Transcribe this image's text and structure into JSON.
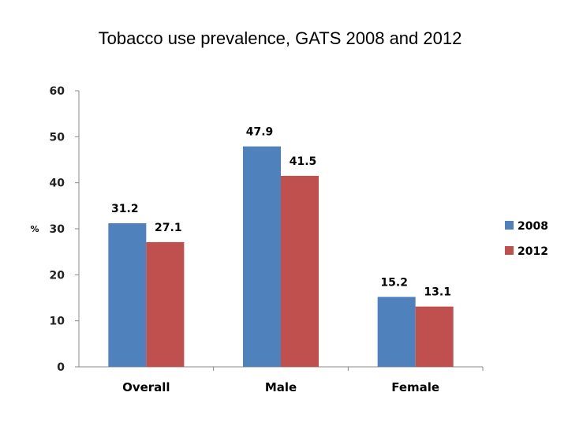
{
  "chart_data": {
    "type": "bar",
    "title": "Tobacco use prevalence, GATS 2008 and 2012",
    "xlabel": "",
    "ylabel": "%",
    "categories": [
      "Overall",
      "Male",
      "Female"
    ],
    "series": [
      {
        "name": "2008",
        "values": [
          31.2,
          47.9,
          15.2
        ],
        "color": "#4f81bd"
      },
      {
        "name": "2012",
        "values": [
          27.1,
          41.5,
          13.1
        ],
        "color": "#c0504d"
      }
    ],
    "ylim": [
      0,
      60
    ],
    "yticks": [
      0,
      10,
      20,
      30,
      40,
      50,
      60
    ],
    "grid": false,
    "legend_position": "right"
  }
}
